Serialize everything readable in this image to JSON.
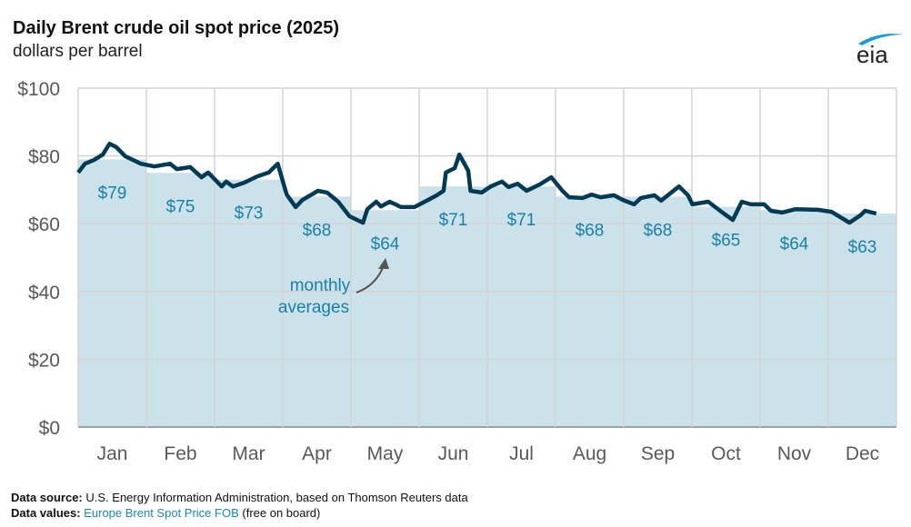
{
  "title": "Daily Brent crude oil spot price (2025)",
  "subtitle": "dollars per barrel",
  "logo_text": "eia",
  "annotation": [
    "monthly",
    "averages"
  ],
  "footer": {
    "source_label": "Data source:",
    "source_text": "U.S. Energy Information Administration, based on Thomson Reuters data",
    "values_label": "Data values:",
    "values_link": "Europe Brent Spot Price FOB",
    "values_text": "(free on board)"
  },
  "colors": {
    "bar": "#cbe2eb",
    "line": "#003a55",
    "label": "#1a7fab",
    "grid": "#d4d4d4",
    "axis_text": "#595959"
  },
  "chart_data": {
    "type": "line",
    "title": "Daily Brent crude oil spot price (2025)",
    "ylabel": "dollars per barrel",
    "ylim": [
      0,
      100
    ],
    "yticks": [
      0,
      20,
      40,
      60,
      80,
      100
    ],
    "ytick_labels": [
      "$0",
      "$20",
      "$40",
      "$60",
      "$80",
      "$100"
    ],
    "grid": true,
    "categories": [
      "Jan",
      "Feb",
      "Mar",
      "Apr",
      "May",
      "Jun",
      "Jul",
      "Aug",
      "Sep",
      "Oct",
      "Nov",
      "Dec"
    ],
    "monthly_averages": [
      79,
      75,
      73,
      68,
      64,
      71,
      71,
      68,
      68,
      65,
      64,
      63
    ],
    "monthly_average_labels": [
      "$79",
      "$75",
      "$73",
      "$68",
      "$64",
      "$71",
      "$71",
      "$68",
      "$68",
      "$65",
      "$64",
      "$63"
    ],
    "daily": [
      [
        "2025-01-01",
        75.1
      ],
      [
        "2025-01-04",
        77.7
      ],
      [
        "2025-01-08",
        78.8
      ],
      [
        "2025-01-12",
        80.4
      ],
      [
        "2025-01-15",
        83.6
      ],
      [
        "2025-01-18",
        82.6
      ],
      [
        "2025-01-22",
        79.9
      ],
      [
        "2025-01-29",
        77.7
      ],
      [
        "2025-02-04",
        76.9
      ],
      [
        "2025-02-11",
        77.7
      ],
      [
        "2025-02-14",
        76.1
      ],
      [
        "2025-02-20",
        76.7
      ],
      [
        "2025-02-25",
        73.7
      ],
      [
        "2025-02-28",
        75.1
      ],
      [
        "2025-03-06",
        71.0
      ],
      [
        "2025-03-08",
        72.4
      ],
      [
        "2025-03-11",
        71.0
      ],
      [
        "2025-03-16",
        72.1
      ],
      [
        "2025-03-22",
        74.0
      ],
      [
        "2025-03-27",
        75.1
      ],
      [
        "2025-03-31",
        77.7
      ],
      [
        "2025-04-04",
        68.6
      ],
      [
        "2025-04-08",
        64.9
      ],
      [
        "2025-04-11",
        67.0
      ],
      [
        "2025-04-18",
        69.7
      ],
      [
        "2025-04-22",
        69.2
      ],
      [
        "2025-04-27",
        66.5
      ],
      [
        "2025-05-02",
        62.2
      ],
      [
        "2025-05-08",
        60.3
      ],
      [
        "2025-05-10",
        64.3
      ],
      [
        "2025-05-14",
        66.5
      ],
      [
        "2025-05-16",
        65.1
      ],
      [
        "2025-05-20",
        66.5
      ],
      [
        "2025-05-25",
        64.9
      ],
      [
        "2025-05-31",
        64.9
      ],
      [
        "2025-06-06",
        67.0
      ],
      [
        "2025-06-10",
        68.4
      ],
      [
        "2025-06-13",
        69.7
      ],
      [
        "2025-06-14",
        75.1
      ],
      [
        "2025-06-18",
        76.4
      ],
      [
        "2025-06-20",
        80.4
      ],
      [
        "2025-06-24",
        75.6
      ],
      [
        "2025-06-25",
        69.7
      ],
      [
        "2025-06-30",
        69.2
      ],
      [
        "2025-07-04",
        71.0
      ],
      [
        "2025-07-09",
        72.4
      ],
      [
        "2025-07-12",
        70.8
      ],
      [
        "2025-07-16",
        71.8
      ],
      [
        "2025-07-20",
        69.7
      ],
      [
        "2025-07-26",
        71.6
      ],
      [
        "2025-07-31",
        73.7
      ],
      [
        "2025-08-05",
        69.7
      ],
      [
        "2025-08-08",
        67.8
      ],
      [
        "2025-08-14",
        67.6
      ],
      [
        "2025-08-18",
        68.6
      ],
      [
        "2025-08-22",
        67.8
      ],
      [
        "2025-08-28",
        68.4
      ],
      [
        "2025-09-01",
        67.0
      ],
      [
        "2025-09-06",
        65.7
      ],
      [
        "2025-09-09",
        67.6
      ],
      [
        "2025-09-15",
        68.4
      ],
      [
        "2025-09-18",
        66.8
      ],
      [
        "2025-09-26",
        71.0
      ],
      [
        "2025-09-30",
        68.4
      ],
      [
        "2025-10-02",
        65.7
      ],
      [
        "2025-10-09",
        66.5
      ],
      [
        "2025-10-16",
        63.0
      ],
      [
        "2025-10-20",
        61.1
      ],
      [
        "2025-10-24",
        66.5
      ],
      [
        "2025-10-28",
        65.7
      ],
      [
        "2025-11-03",
        65.7
      ],
      [
        "2025-11-06",
        63.8
      ],
      [
        "2025-11-11",
        63.3
      ],
      [
        "2025-11-17",
        64.3
      ],
      [
        "2025-11-27",
        64.1
      ],
      [
        "2025-12-03",
        63.5
      ],
      [
        "2025-12-11",
        60.3
      ],
      [
        "2025-12-16",
        62.5
      ],
      [
        "2025-12-18",
        63.8
      ],
      [
        "2025-12-23",
        63.0
      ]
    ]
  }
}
